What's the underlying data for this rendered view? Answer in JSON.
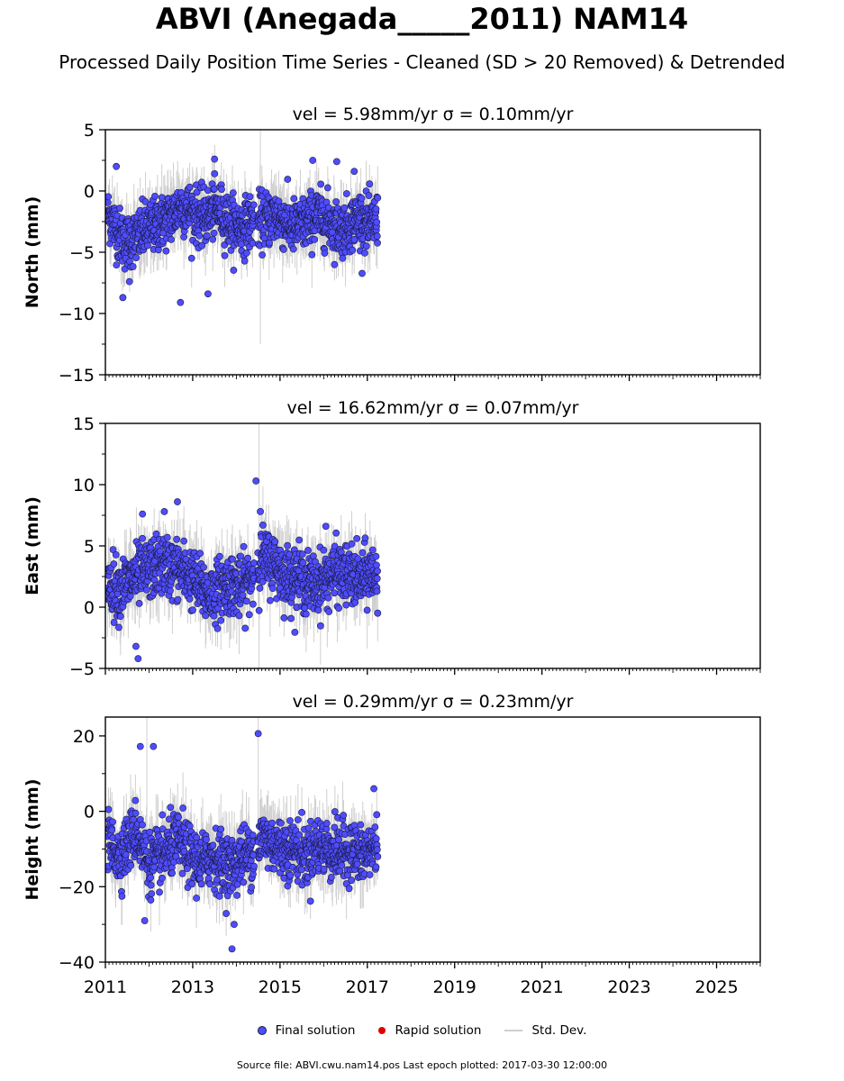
{
  "title": "ABVI (Anegada_____2011) NAM14",
  "subtitle": "Processed Daily Position Time Series - Cleaned (SD > 20 Removed) & Detrended",
  "legend": {
    "final_label": "Final solution",
    "rapid_label": "Rapid solution",
    "std_label": "Std. Dev."
  },
  "source_text": "Source file: ABVI.cwu.nam14.pos  Last epoch plotted: 2017-03-30 12:00:00",
  "colors": {
    "final": "#4f4cff",
    "rapid": "#e00000",
    "std": "#cfcfcf",
    "marker_edge": "#1a1a40"
  },
  "chart_data": [
    {
      "type": "scatter",
      "panel_title": "vel = 5.98mm/yr   σ = 0.10mm/yr",
      "ylabel": "North (mm)",
      "xlim": [
        2011,
        2026
      ],
      "ylim": [
        -15,
        5
      ],
      "yticks": [
        -15,
        -10,
        -5,
        0,
        5
      ],
      "xticks": [
        2011,
        2013,
        2015,
        2017,
        2019,
        2021,
        2023,
        2025
      ],
      "show_xtick_labels": false,
      "data_range": [
        2011.05,
        2017.24
      ],
      "series": [
        {
          "x": [
            2011.1,
            2011.3,
            2011.45,
            2011.7,
            2012.0,
            2012.3,
            2012.55,
            2012.7,
            2012.95,
            2013.2,
            2013.4,
            2013.6,
            2013.85,
            2014.1,
            2014.35,
            2014.6,
            2014.9,
            2015.1,
            2015.35,
            2015.6,
            2015.85,
            2016.1,
            2016.35,
            2016.6,
            2016.85,
            2017.05,
            2017.2
          ],
          "center": [
            -2.0,
            -3.5,
            -4.2,
            -3.8,
            -3.0,
            -2.6,
            -2.0,
            -1.2,
            -1.6,
            -2.3,
            -1.8,
            -1.5,
            -2.6,
            -3.0,
            -2.5,
            -2.4,
            -2.0,
            -2.5,
            -3.0,
            -2.6,
            -2.0,
            -2.4,
            -3.2,
            -2.7,
            -2.2,
            -2.9,
            -2.4
          ],
          "spread": 2.0,
          "outliers": [
            [
              2011.25,
              2.0
            ],
            [
              2011.4,
              -8.7
            ],
            [
              2011.55,
              -7.4
            ],
            [
              2012.72,
              -9.1
            ],
            [
              2013.35,
              -8.4
            ],
            [
              2013.5,
              2.6
            ],
            [
              2015.75,
              2.5
            ],
            [
              2016.3,
              2.4
            ],
            [
              2016.7,
              1.6
            ]
          ],
          "std_spikes": [
            [
              2014.55,
              -12.5,
              5.0
            ]
          ]
        }
      ]
    },
    {
      "type": "scatter",
      "panel_title": "vel = 16.62mm/yr   σ = 0.07mm/yr",
      "ylabel": "East (mm)",
      "xlim": [
        2011,
        2026
      ],
      "ylim": [
        -5,
        15
      ],
      "yticks": [
        -5,
        0,
        5,
        10,
        15
      ],
      "xticks": [
        2011,
        2013,
        2015,
        2017,
        2019,
        2021,
        2023,
        2025
      ],
      "show_xtick_labels": false,
      "data_range": [
        2011.05,
        2017.24
      ],
      "series": [
        {
          "x": [
            2011.1,
            2011.3,
            2011.45,
            2011.7,
            2012.0,
            2012.3,
            2012.55,
            2012.7,
            2012.95,
            2013.2,
            2013.4,
            2013.6,
            2013.85,
            2014.1,
            2014.35,
            2014.6,
            2014.9,
            2015.1,
            2015.35,
            2015.6,
            2015.85,
            2016.1,
            2016.35,
            2016.6,
            2016.85,
            2017.05,
            2017.2
          ],
          "center": [
            2.0,
            1.5,
            1.8,
            2.5,
            3.0,
            3.5,
            3.2,
            3.0,
            2.5,
            1.5,
            1.0,
            1.5,
            2.0,
            1.5,
            2.5,
            4.0,
            3.5,
            2.5,
            2.5,
            2.0,
            1.8,
            2.5,
            2.8,
            2.5,
            2.2,
            2.8,
            2.5
          ],
          "spread": 2.2,
          "outliers": [
            [
              2011.75,
              -4.2
            ],
            [
              2011.7,
              -3.2
            ],
            [
              2011.85,
              7.6
            ],
            [
              2012.65,
              8.6
            ],
            [
              2014.45,
              10.3
            ],
            [
              2014.55,
              7.8
            ],
            [
              2012.35,
              7.8
            ],
            [
              2016.05,
              6.6
            ]
          ],
          "std_spikes": [
            [
              2014.52,
              -5.0,
              15.0
            ]
          ]
        }
      ]
    },
    {
      "type": "scatter",
      "panel_title": "vel = 0.29mm/yr   σ = 0.23mm/yr",
      "ylabel": "Height (mm)",
      "xlim": [
        2011,
        2026
      ],
      "ylim": [
        -40,
        25
      ],
      "yticks": [
        -40,
        -20,
        0,
        20
      ],
      "xticks": [
        2011,
        2013,
        2015,
        2017,
        2019,
        2021,
        2023,
        2025
      ],
      "show_xtick_labels": true,
      "data_range": [
        2011.05,
        2017.24
      ],
      "series": [
        {
          "x": [
            2011.1,
            2011.3,
            2011.45,
            2011.7,
            2012.0,
            2012.3,
            2012.55,
            2012.7,
            2012.95,
            2013.2,
            2013.4,
            2013.6,
            2013.85,
            2014.1,
            2014.35,
            2014.6,
            2014.9,
            2015.1,
            2015.35,
            2015.6,
            2015.85,
            2016.1,
            2016.35,
            2016.6,
            2016.85,
            2017.05,
            2017.2
          ],
          "center": [
            -8,
            -12,
            -10,
            -5,
            -14,
            -12,
            -9,
            -8,
            -12,
            -14,
            -12,
            -13,
            -15,
            -12,
            -11,
            -7,
            -9,
            -10,
            -10,
            -12,
            -9,
            -10,
            -11,
            -10,
            -12,
            -11,
            -9
          ],
          "spread": 7.0,
          "outliers": [
            [
              2011.8,
              17.2
            ],
            [
              2012.1,
              17.2
            ],
            [
              2014.5,
              20.6
            ],
            [
              2013.9,
              -36.5
            ],
            [
              2013.95,
              -30.0
            ],
            [
              2011.9,
              -29.0
            ],
            [
              2017.15,
              6.0
            ]
          ],
          "std_spikes": [
            [
              2011.95,
              -30.0,
              25.0
            ],
            [
              2014.5,
              -10.0,
              25.0
            ]
          ]
        }
      ]
    }
  ]
}
